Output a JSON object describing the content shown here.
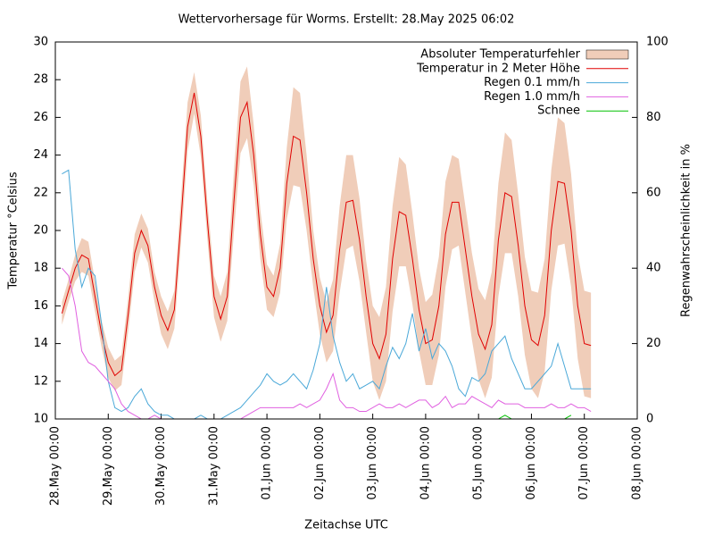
{
  "chart_data": {
    "type": "line",
    "title": "Wettervorhersage für Worms. Erstellt: 28.May 2025 06:02",
    "xlabel": "Zeitachse UTC",
    "ylabel": "Temperatur °Celsius",
    "y2label": "Regenwahrscheinlichkeit in %",
    "legend": "top-right",
    "xlim": [
      "28.May 00:00",
      "08.Jun 00:00"
    ],
    "xticks": [
      "28.May 00:00",
      "29.May 00:00",
      "30.May 00:00",
      "31.May 00:00",
      "01.Jun 00:00",
      "02.Jun 00:00",
      "03.Jun 00:00",
      "04.Jun 00:00",
      "05.Jun 00:00",
      "06.Jun 00:00",
      "07.Jun 00:00",
      "08.Jun 00:00"
    ],
    "ylim": [
      10,
      30
    ],
    "yticks": [
      10,
      12,
      14,
      16,
      18,
      20,
      22,
      24,
      26,
      28,
      30
    ],
    "y2lim": [
      0,
      100
    ],
    "y2ticks": [
      0,
      20,
      40,
      60,
      80,
      100
    ],
    "x": [
      "28.May 03:00",
      "28.May 06:00",
      "28.May 09:00",
      "28.May 12:00",
      "28.May 15:00",
      "28.May 18:00",
      "28.May 21:00",
      "29.May 00:00",
      "29.May 03:00",
      "29.May 06:00",
      "29.May 09:00",
      "29.May 12:00",
      "29.May 15:00",
      "29.May 18:00",
      "29.May 21:00",
      "30.May 00:00",
      "30.May 03:00",
      "30.May 06:00",
      "30.May 09:00",
      "30.May 12:00",
      "30.May 15:00",
      "30.May 18:00",
      "30.May 21:00",
      "31.May 00:00",
      "31.May 03:00",
      "31.May 06:00",
      "31.May 09:00",
      "31.May 12:00",
      "31.May 15:00",
      "31.May 18:00",
      "31.May 21:00",
      "01.Jun 00:00",
      "01.Jun 03:00",
      "01.Jun 06:00",
      "01.Jun 09:00",
      "01.Jun 12:00",
      "01.Jun 15:00",
      "01.Jun 18:00",
      "01.Jun 21:00",
      "02.Jun 00:00",
      "02.Jun 03:00",
      "02.Jun 06:00",
      "02.Jun 09:00",
      "02.Jun 12:00",
      "02.Jun 15:00",
      "02.Jun 18:00",
      "02.Jun 21:00",
      "03.Jun 00:00",
      "03.Jun 03:00",
      "03.Jun 06:00",
      "03.Jun 09:00",
      "03.Jun 12:00",
      "03.Jun 15:00",
      "03.Jun 18:00",
      "03.Jun 21:00",
      "04.Jun 00:00",
      "04.Jun 03:00",
      "04.Jun 06:00",
      "04.Jun 09:00",
      "04.Jun 12:00",
      "04.Jun 15:00",
      "04.Jun 18:00",
      "04.Jun 21:00",
      "05.Jun 00:00",
      "05.Jun 03:00",
      "05.Jun 06:00",
      "05.Jun 09:00",
      "05.Jun 12:00",
      "05.Jun 15:00",
      "05.Jun 18:00",
      "05.Jun 21:00",
      "06.Jun 00:00",
      "06.Jun 03:00",
      "06.Jun 06:00",
      "06.Jun 09:00",
      "06.Jun 12:00",
      "06.Jun 15:00",
      "06.Jun 18:00",
      "06.Jun 21:00",
      "07.Jun 00:00",
      "07.Jun 03:00"
    ],
    "series": [
      {
        "name": "Absoluter Temperaturfehler",
        "style": "band",
        "color": "#f0cdb9",
        "values": [
          0.6,
          0.6,
          0.7,
          0.9,
          0.9,
          0.8,
          0.7,
          0.8,
          0.8,
          0.8,
          0.9,
          1.0,
          0.9,
          0.9,
          0.8,
          1.0,
          1.0,
          1.0,
          1.2,
          1.3,
          1.1,
          1.1,
          1.0,
          1.1,
          1.2,
          1.3,
          1.6,
          1.9,
          1.9,
          1.6,
          1.3,
          1.2,
          1.1,
          1.3,
          1.9,
          2.6,
          2.5,
          2.0,
          1.5,
          1.5,
          1.6,
          1.9,
          2.3,
          2.5,
          2.4,
          2.2,
          1.9,
          2.0,
          2.2,
          2.5,
          2.8,
          2.9,
          2.7,
          2.4,
          2.2,
          2.2,
          2.4,
          2.6,
          2.8,
          2.5,
          2.3,
          2.3,
          2.3,
          2.4,
          2.6,
          2.8,
          3.0,
          3.2,
          3.0,
          2.7,
          2.6,
          2.6,
          2.8,
          3.0,
          3.2,
          3.4,
          3.2,
          3.0,
          2.8,
          2.8,
          2.8
        ]
      },
      {
        "name": "Temperatur in 2 Meter Höhe",
        "color": "#e00000",
        "values": [
          15.6,
          16.8,
          18.0,
          18.7,
          18.5,
          16.5,
          14.5,
          13.0,
          12.3,
          12.6,
          15.5,
          18.8,
          20.0,
          19.2,
          17.0,
          15.5,
          14.7,
          15.8,
          20.5,
          25.5,
          27.3,
          25.0,
          20.5,
          16.5,
          15.3,
          16.5,
          21.5,
          26.0,
          26.8,
          24.0,
          19.8,
          17.0,
          16.5,
          18.0,
          22.5,
          25.0,
          24.8,
          22.0,
          18.5,
          16.0,
          14.6,
          15.5,
          19.0,
          21.5,
          21.6,
          19.5,
          16.5,
          14.0,
          13.2,
          14.5,
          18.5,
          21.0,
          20.8,
          18.5,
          15.8,
          14.0,
          14.2,
          16.0,
          19.8,
          21.5,
          21.5,
          19.0,
          16.5,
          14.5,
          13.7,
          15.0,
          19.5,
          22.0,
          21.8,
          19.2,
          16.0,
          14.2,
          13.9,
          15.5,
          20.0,
          22.6,
          22.5,
          20.0,
          16.0,
          14.0,
          13.9
        ]
      },
      {
        "name": "Regen 0.1 mm/h",
        "axis": "y2",
        "color": "#4aa8d8",
        "values": [
          65,
          66,
          45,
          35,
          40,
          38,
          25,
          10,
          3,
          2,
          3,
          6,
          8,
          4,
          2,
          1,
          1,
          0,
          0,
          0,
          0,
          1,
          0,
          0,
          0,
          1,
          2,
          3,
          5,
          7,
          9,
          12,
          10,
          9,
          10,
          12,
          10,
          8,
          13,
          20,
          35,
          22,
          15,
          10,
          12,
          8,
          9,
          10,
          8,
          14,
          19,
          16,
          20,
          28,
          18,
          24,
          16,
          20,
          18,
          14,
          8,
          6,
          11,
          10,
          12,
          18,
          20,
          22,
          16,
          12,
          8,
          8,
          10,
          12,
          14,
          20,
          14,
          8,
          8,
          8,
          8
        ]
      },
      {
        "name": "Regen 1.0 mm/h",
        "axis": "y2",
        "color": "#e060e0",
        "values": [
          40,
          38,
          30,
          18,
          15,
          14,
          12,
          10,
          8,
          4,
          2,
          1,
          0,
          0,
          1,
          0,
          0,
          0,
          0,
          0,
          0,
          0,
          0,
          0,
          0,
          0,
          0,
          0,
          1,
          2,
          3,
          3,
          3,
          3,
          3,
          3,
          4,
          3,
          4,
          5,
          8,
          12,
          5,
          3,
          3,
          2,
          2,
          3,
          4,
          3,
          3,
          4,
          3,
          4,
          5,
          5,
          3,
          4,
          6,
          3,
          4,
          4,
          6,
          5,
          4,
          3,
          5,
          4,
          4,
          4,
          3,
          3,
          3,
          3,
          4,
          3,
          3,
          4,
          3,
          3,
          2
        ]
      },
      {
        "name": "Schnee",
        "axis": "y2",
        "color": "#00c000",
        "values": [
          null,
          null,
          null,
          null,
          null,
          null,
          null,
          null,
          null,
          null,
          null,
          null,
          null,
          null,
          null,
          null,
          null,
          null,
          null,
          null,
          null,
          null,
          null,
          null,
          null,
          null,
          null,
          null,
          null,
          null,
          null,
          null,
          null,
          null,
          null,
          null,
          null,
          null,
          null,
          null,
          null,
          null,
          null,
          null,
          null,
          null,
          null,
          null,
          null,
          null,
          null,
          null,
          null,
          null,
          null,
          null,
          null,
          null,
          null,
          null,
          null,
          null,
          null,
          null,
          null,
          null,
          0,
          1,
          0,
          null,
          null,
          null,
          null,
          null,
          null,
          null,
          0,
          1,
          null,
          null,
          null
        ]
      }
    ]
  }
}
